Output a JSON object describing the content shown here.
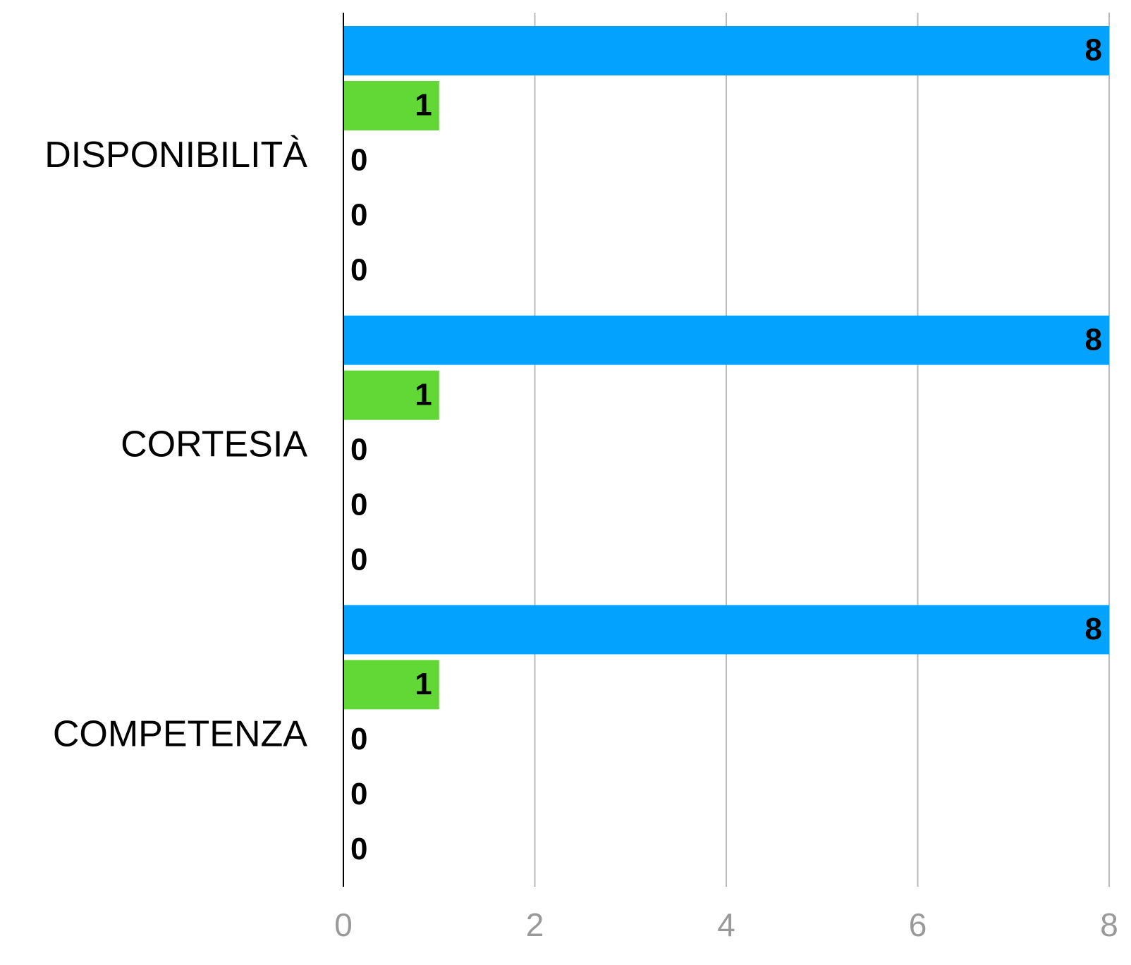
{
  "chart_data": {
    "type": "bar",
    "orientation": "horizontal",
    "categories": [
      "DISPONIBILITÀ",
      "CORTESIA",
      "COMPETENZA"
    ],
    "series": [
      {
        "color": "#03a2fe",
        "values": [
          8,
          8,
          8
        ]
      },
      {
        "color": "#61d836",
        "values": [
          1,
          1,
          1
        ]
      },
      {
        "values": [
          0,
          0,
          0
        ]
      },
      {
        "values": [
          0,
          0,
          0
        ]
      },
      {
        "values": [
          0,
          0,
          0
        ]
      }
    ],
    "xlim": [
      0,
      8
    ],
    "xticks": [
      0,
      2,
      4,
      6,
      8
    ],
    "grid": true
  }
}
